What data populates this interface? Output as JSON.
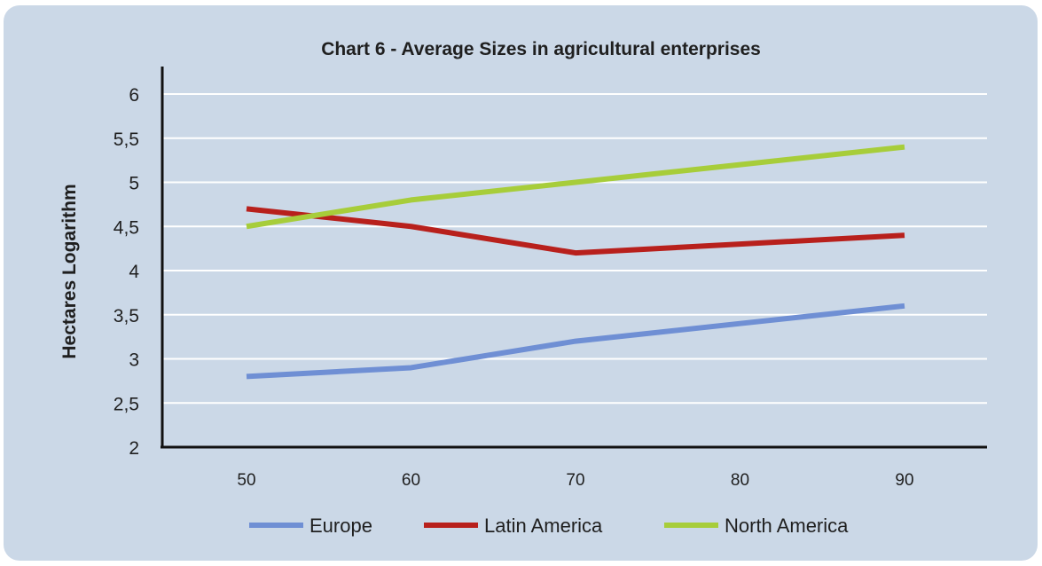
{
  "chart_data": {
    "type": "line",
    "title": "Chart 6 - Average Sizes in agricultural enterprises",
    "xlabel": "",
    "ylabel": "Hectares Logarithm",
    "x": [
      50,
      60,
      70,
      80,
      90
    ],
    "x_tick_labels": [
      "50",
      "60",
      "70",
      "80",
      "90"
    ],
    "ylim": [
      2,
      6
    ],
    "y_ticks": [
      2,
      2.5,
      3,
      3.5,
      4,
      4.5,
      5,
      5.5,
      6
    ],
    "y_tick_labels": [
      "2",
      "2,5",
      "3",
      "3,5",
      "4",
      "4,5",
      "5",
      "5,5",
      "6"
    ],
    "grid": true,
    "legend_position": "bottom",
    "series": [
      {
        "name": "Europe",
        "color": "#6f8fd4",
        "values": [
          2.8,
          2.9,
          3.2,
          3.4,
          3.6
        ]
      },
      {
        "name": "Latin America",
        "color": "#b8201c",
        "values": [
          4.7,
          4.5,
          4.2,
          4.3,
          4.4
        ]
      },
      {
        "name": "North America",
        "color": "#a7cd3a",
        "values": [
          4.5,
          4.8,
          5.0,
          5.2,
          5.4
        ]
      }
    ]
  }
}
